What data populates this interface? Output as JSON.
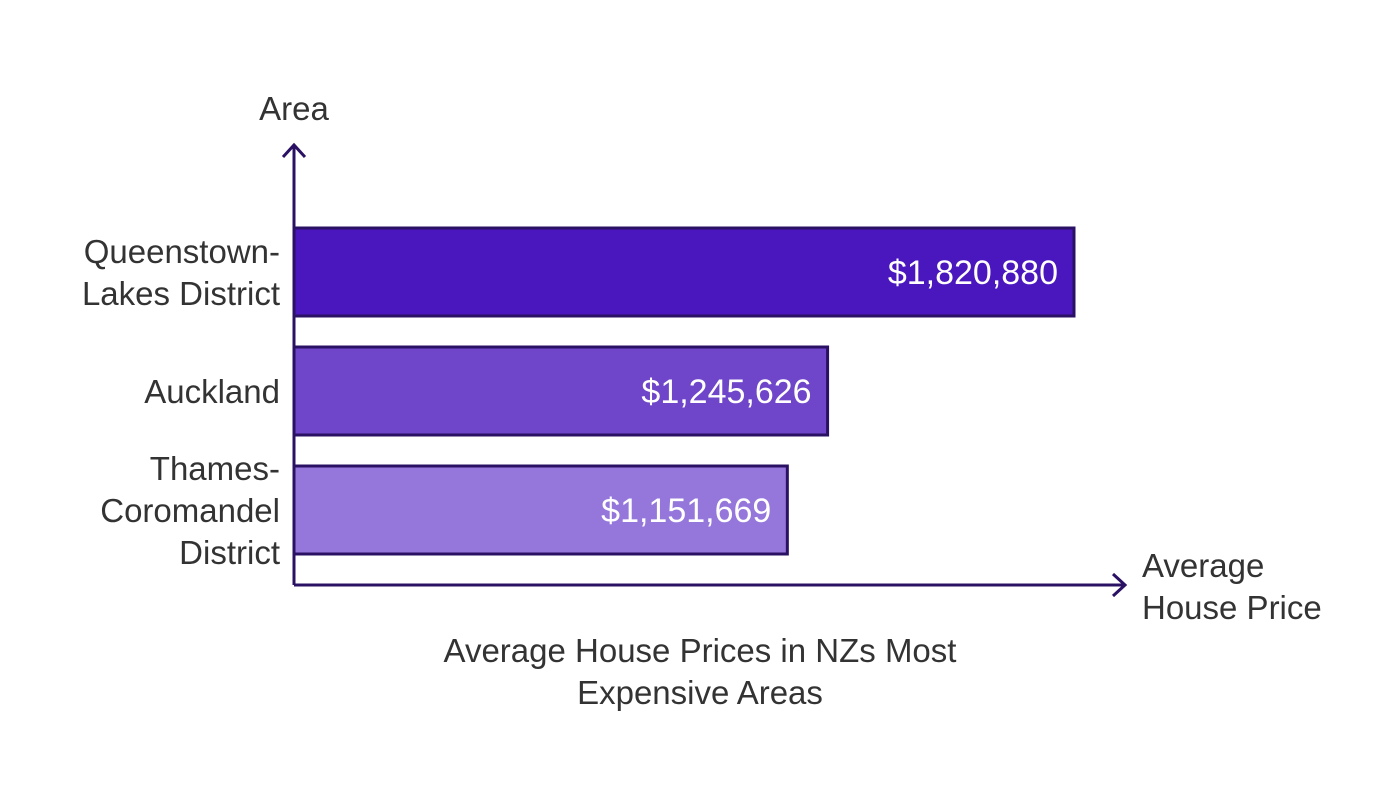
{
  "chart_data": {
    "type": "bar",
    "orientation": "horizontal",
    "title": "Average House Prices in NZs Most Expensive Areas",
    "title_lines": [
      "Average House Prices in NZs Most",
      "Expensive Areas"
    ],
    "xlabel": "Average House Price",
    "xlabel_lines": [
      "Average",
      "House Price"
    ],
    "ylabel": "Area",
    "categories": [
      "Queenstown-Lakes District",
      "Auckland",
      "Thames-Coromandel District"
    ],
    "category_lines": [
      [
        "Queenstown-",
        "Lakes District"
      ],
      [
        "Auckland"
      ],
      [
        "Thames-",
        "Coromandel",
        "District"
      ]
    ],
    "values": [
      1820880,
      1245626,
      1151669
    ],
    "data_labels": [
      "$1,820,880",
      "$1,245,626",
      "$1,151,669"
    ],
    "colors": [
      "#4A16BE",
      "#6F45C9",
      "#9577DB"
    ],
    "axis_color": "#2B1163",
    "grid": false,
    "legend": "none"
  }
}
